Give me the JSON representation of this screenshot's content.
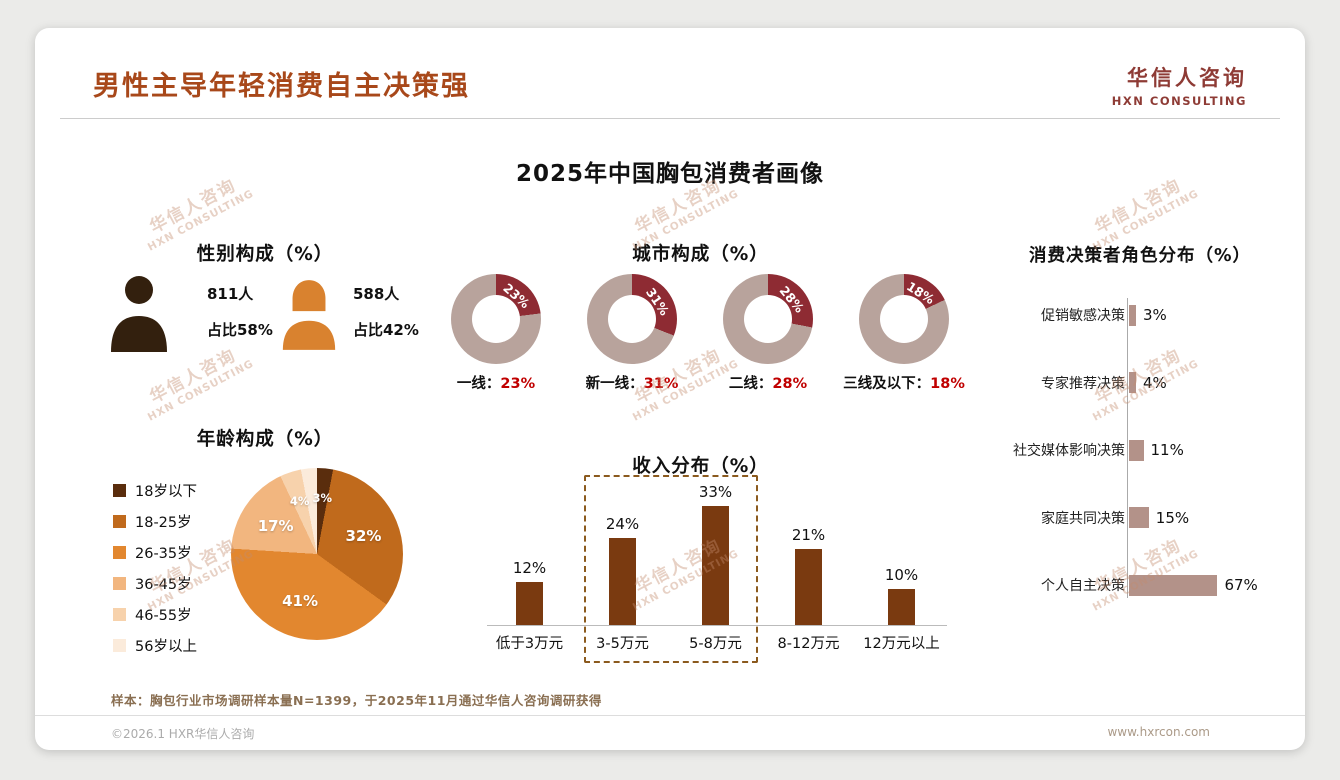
{
  "header": {
    "title": "男性主导年轻消费自主决策强",
    "logo_cn": "华信人咨询",
    "logo_en": "HXN CONSULTING"
  },
  "main_title": "2025年中国胸包消费者画像",
  "watermark": {
    "line1": "华信人咨询",
    "line2": "HXN CONSULTING"
  },
  "sections": {
    "gender_heading": "性别构成（%）",
    "city_heading": "城市构成（%）",
    "age_heading": "年龄构成（%）",
    "income_heading": "收入分布（%）",
    "decision_heading": "消费决策者角色分布（%）"
  },
  "gender": {
    "male_count": "811人",
    "male_share": "占比58%",
    "female_count": "588人",
    "female_share": "占比42%",
    "male_color": "#33200e",
    "female_color": "#d9822f"
  },
  "sample_note": "样本：胸包行业市场调研样本量N=1399，于2025年11月通过华信人咨询调研获得",
  "footer": {
    "left": "©2026.1 HXR华信人咨询",
    "right": "www.hxrcon.com"
  },
  "chart_data": [
    {
      "id": "gender",
      "type": "table",
      "title": "性别构成（%）",
      "rows": [
        {
          "label": "男性",
          "count": 811,
          "share_pct": 58
        },
        {
          "label": "女性",
          "count": 588,
          "share_pct": 42
        }
      ]
    },
    {
      "id": "city",
      "type": "pie",
      "variant": "donut-set",
      "title": "城市构成（%）",
      "donuts": [
        {
          "label": "一线",
          "value": 23
        },
        {
          "label": "新一线",
          "value": 31
        },
        {
          "label": "二线",
          "value": 28
        },
        {
          "label": "三线及以下",
          "value": 18
        }
      ],
      "segment_color": "#8e2b33",
      "rest_color": "#b8a39c"
    },
    {
      "id": "age",
      "type": "pie",
      "title": "年龄构成（%）",
      "categories": [
        "18岁以下",
        "18-25岁",
        "26-35岁",
        "36-45岁",
        "46-55岁",
        "56岁以上"
      ],
      "values": [
        3,
        32,
        41,
        17,
        4,
        3
      ],
      "colors": [
        "#5a2d0d",
        "#c06a1c",
        "#e2872f",
        "#f2b67f",
        "#f7d2ac",
        "#fbebdb"
      ],
      "legend_position": "left"
    },
    {
      "id": "income",
      "type": "bar",
      "title": "收入分布（%）",
      "categories": [
        "低于3万元",
        "3-5万元",
        "5-8万元",
        "8-12万元",
        "12万元以上"
      ],
      "values": [
        12,
        24,
        33,
        21,
        10
      ],
      "bar_color": "#7a3a10",
      "ylim": [
        0,
        40
      ],
      "highlight": {
        "categories": [
          "3-5万元",
          "5-8万元"
        ],
        "style": "dashed-box"
      }
    },
    {
      "id": "decision",
      "type": "bar",
      "orientation": "horizontal",
      "title": "消费决策者角色分布（%）",
      "categories": [
        "促销敏感决策",
        "专家推荐决策",
        "社交媒体影响决策",
        "家庭共同决策",
        "个人自主决策"
      ],
      "values": [
        3,
        4,
        11,
        15,
        67
      ],
      "bar_color": "#b39289",
      "xlim": [
        0,
        70
      ]
    }
  ]
}
